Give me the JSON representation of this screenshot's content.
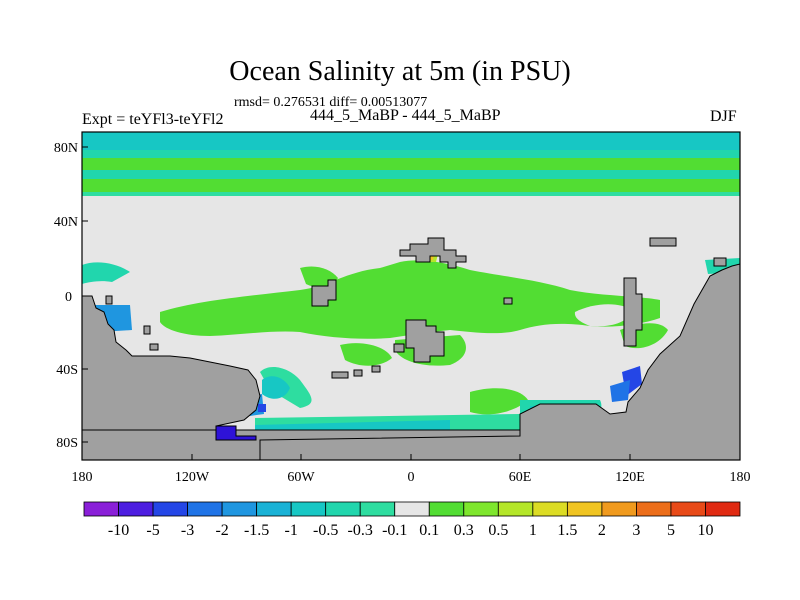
{
  "title": "Ocean Salinity at 5m (in PSU)",
  "stats_line": "rmsd= 0.276531 diff= 0.00513077",
  "left_label": "Expt = teYFl3-teYFl2",
  "center_label": "444_5_MaBP - 444_5_MaBP",
  "right_label": "DJF",
  "lat_ticks": [
    "80N",
    "40N",
    "0",
    "40S",
    "80S"
  ],
  "lon_ticks": [
    "180",
    "120W",
    "60W",
    "0",
    "60E",
    "120E",
    "180"
  ],
  "colorbar": {
    "labels": [
      "-10",
      "-5",
      "-3",
      "-2",
      "-1.5",
      "-1",
      "-0.5",
      "-0.3",
      "-0.1",
      "0.1",
      "0.3",
      "0.5",
      "1",
      "1.5",
      "2",
      "3",
      "5",
      "10"
    ],
    "colors": [
      "#8a1fd8",
      "#4d1ee0",
      "#2446e6",
      "#1f73e6",
      "#1f96e0",
      "#1ab2d6",
      "#17c7c4",
      "#21d6ad",
      "#2edda0",
      "#e6e6e6",
      "#52dd33",
      "#7ee62d",
      "#b4e629",
      "#dcdc24",
      "#f0c422",
      "#f09a1e",
      "#ec6e1a",
      "#e84a18",
      "#e02a12"
    ]
  },
  "colors": {
    "land": "#a0a0a0",
    "neutral": "#e6e6e6",
    "slight_fresh": "#21d6ad",
    "fresh": "#17c7c4",
    "slight_salty": "#52dd33"
  }
}
